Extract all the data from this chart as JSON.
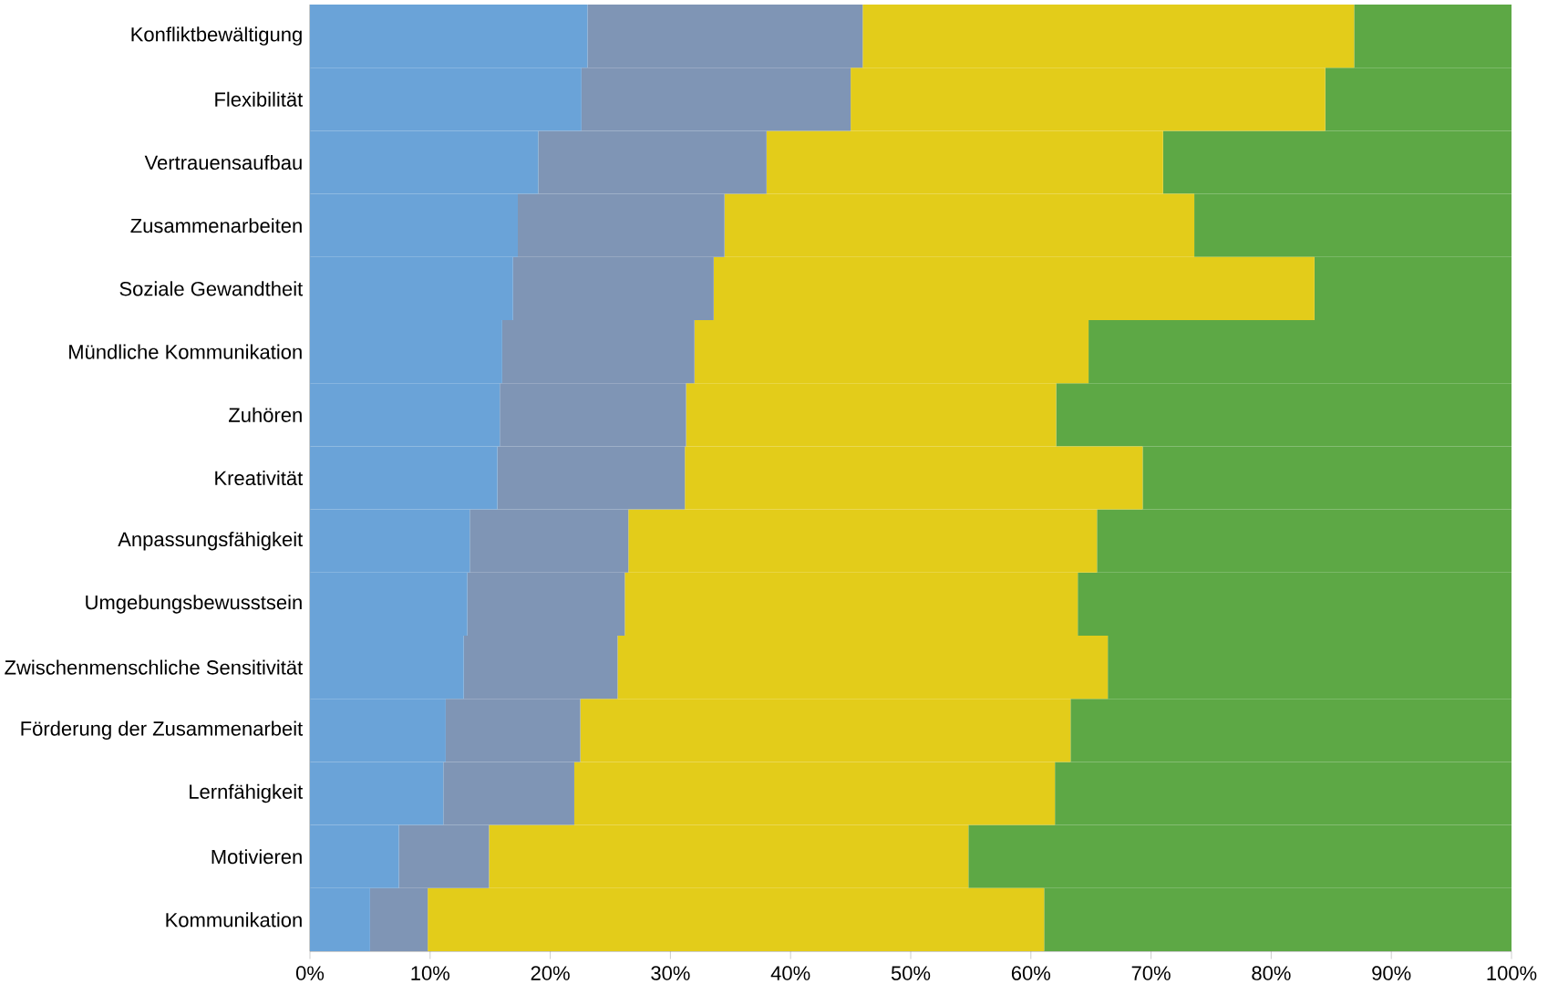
{
  "chart_data": {
    "type": "bar",
    "orientation": "horizontal",
    "stacked": true,
    "categories": [
      "Konfliktbewältigung",
      "Flexibilität",
      "Vertrauensaufbau",
      "Zusammenarbeiten",
      "Soziale Gewandtheit",
      "Mündliche Kommunikation",
      "Zuhören",
      "Kreativität",
      "Anpassungsfähigkeit",
      "Umgebungsbewusstsein",
      "Zwischenmenschliche Sensitivität",
      "Förderung der Zusammenarbeit",
      "Lernfähigkeit",
      "Motivieren",
      "Kommunikation"
    ],
    "series": [
      {
        "color": "#6aa3d8",
        "values": [
          23.1,
          22.6,
          19.0,
          17.3,
          16.9,
          16.0,
          15.8,
          15.6,
          13.3,
          13.1,
          12.8,
          11.3,
          11.1,
          7.4,
          5.0
        ]
      },
      {
        "color": "#7f95b5",
        "values": [
          22.9,
          22.4,
          19.0,
          17.2,
          16.7,
          16.0,
          15.5,
          15.6,
          13.2,
          13.1,
          12.8,
          11.2,
          10.9,
          7.5,
          4.8
        ]
      },
      {
        "color": "#e3cc1a",
        "values": [
          40.9,
          39.5,
          33.0,
          39.1,
          50.0,
          32.8,
          30.8,
          38.1,
          39.0,
          37.7,
          40.8,
          40.8,
          40.0,
          39.9,
          51.3
        ]
      },
      {
        "color": "#5da845",
        "values": [
          13.1,
          15.5,
          29.0,
          26.4,
          16.4,
          35.2,
          37.9,
          30.7,
          34.5,
          36.1,
          33.6,
          36.7,
          38.0,
          45.2,
          38.9
        ]
      }
    ],
    "xlim": [
      0,
      100
    ],
    "xticks": [
      {
        "value": 0,
        "label": "0%"
      },
      {
        "value": 10,
        "label": "10%"
      },
      {
        "value": 20,
        "label": "20%"
      },
      {
        "value": 30,
        "label": "30%"
      },
      {
        "value": 40,
        "label": "40%"
      },
      {
        "value": 50,
        "label": "50%"
      },
      {
        "value": 60,
        "label": "60%"
      },
      {
        "value": 70,
        "label": "70%"
      },
      {
        "value": 80,
        "label": "80%"
      },
      {
        "value": 90,
        "label": "90%"
      },
      {
        "value": 100,
        "label": "100%"
      }
    ]
  }
}
